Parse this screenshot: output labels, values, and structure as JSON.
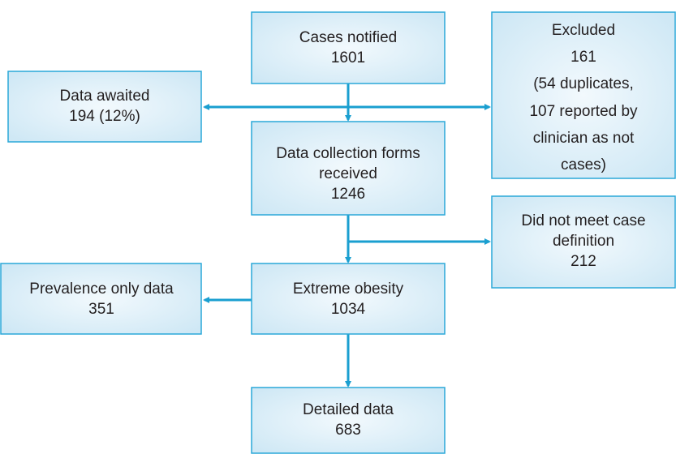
{
  "nodes": [
    {
      "lines": [
        "Cases notified",
        "1601"
      ]
    },
    {
      "lines": [
        "Data awaited",
        "194 (12%)"
      ]
    },
    {
      "lines": [
        "Excluded",
        "161",
        "(54 duplicates,",
        "107 reported by",
        "clinician as not",
        "cases)"
      ]
    },
    {
      "lines": [
        "Data collection forms",
        "received",
        "1246"
      ]
    },
    {
      "lines": [
        "Did not meet case",
        "definition",
        "212"
      ]
    },
    {
      "lines": [
        "Prevalence only data",
        "351"
      ]
    },
    {
      "lines": [
        "Extreme obesity",
        "1034"
      ]
    },
    {
      "lines": [
        "Detailed data",
        "683"
      ]
    }
  ]
}
